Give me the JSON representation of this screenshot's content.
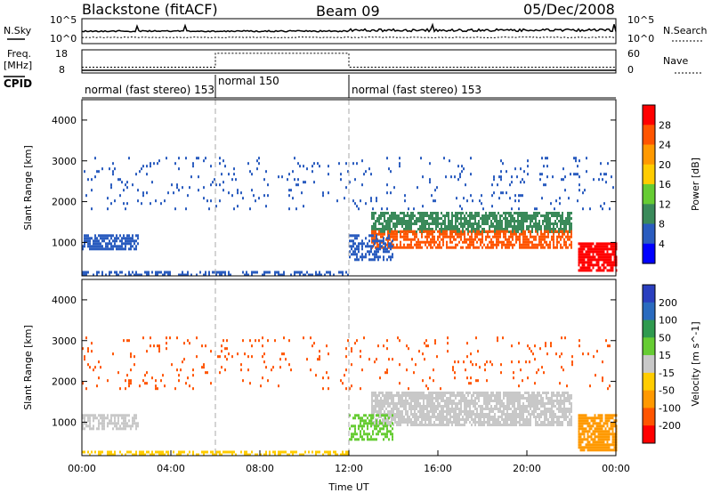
{
  "header": {
    "station": "Blackstone (fitACF)",
    "beam": "Beam 09",
    "date": "05/Dec/2008"
  },
  "summary": {
    "nsky_label": "N.Sky",
    "nsky_ticks": [
      "10^5",
      "10^0"
    ],
    "nsearch_label": "N.Search",
    "nsearch_ticks": [
      "10^5",
      "10^0"
    ],
    "freq_label": "Freq.",
    "freq_unit": "[MHz]",
    "freq_ticks": [
      "18",
      "8"
    ],
    "nave_label": "Nave",
    "nave_ticks": [
      "60",
      "0"
    ],
    "cpid_label": "CPID",
    "cpid_segments": [
      {
        "label": "normal (fast stereo) 153",
        "start_hour": 0,
        "end_hour": 6
      },
      {
        "label": "normal 150",
        "start_hour": 6,
        "end_hour": 12
      },
      {
        "label": "normal (fast stereo) 153",
        "start_hour": 12,
        "end_hour": 24
      }
    ],
    "freq_mhz": [
      {
        "t": 0,
        "v": 10.5
      },
      {
        "t": 6,
        "v": 10.5
      },
      {
        "t": 6,
        "v": 16.5
      },
      {
        "t": 12,
        "v": 16.5
      },
      {
        "t": 12,
        "v": 10.5
      },
      {
        "t": 24,
        "v": 10.5
      }
    ]
  },
  "chart_data": [
    {
      "type": "heatmap",
      "name": "power",
      "ylabel": "Slant Range [km]",
      "xlabel": "",
      "xlim": [
        0,
        24
      ],
      "ylim": [
        180,
        4500
      ],
      "yticks": [
        "1000",
        "2000",
        "3000",
        "4000"
      ],
      "ytick_values": [
        1000,
        2000,
        3000,
        4000
      ],
      "colorbar_label": "Power [dB]",
      "colorbar_ticks": [
        "4",
        "8",
        "12",
        "16",
        "20",
        "24",
        "28"
      ],
      "colorbar_colors": [
        "#0000ff",
        "#2a5cbf",
        "#3a8a5a",
        "#66cc33",
        "#ffcc00",
        "#ff9900",
        "#ff5500",
        "#ff0000"
      ],
      "regions": [
        {
          "t0": 0.0,
          "t1": 2.5,
          "r0": 850,
          "r1": 1200,
          "color": "#2a5cbf",
          "density": 0.7
        },
        {
          "t0": 13.0,
          "t1": 22.0,
          "r0": 1250,
          "r1": 1750,
          "color": "#3a8a5a",
          "density": 0.75
        },
        {
          "t0": 13.0,
          "t1": 22.0,
          "r0": 900,
          "r1": 1300,
          "color": "#ff5500",
          "density": 0.7
        },
        {
          "t0": 22.3,
          "t1": 24.0,
          "r0": 300,
          "r1": 1000,
          "color": "#ff0000",
          "density": 0.8
        },
        {
          "t0": 12.0,
          "t1": 14.0,
          "r0": 600,
          "r1": 1200,
          "color": "#2a5cbf",
          "density": 0.45
        },
        {
          "t0": 0.0,
          "t1": 12.0,
          "r0": 180,
          "r1": 300,
          "color": "#2a5cbf",
          "density": 0.5
        },
        {
          "t0": 0.0,
          "t1": 24.0,
          "r0": 1800,
          "r1": 3100,
          "color": "#2a5cbf",
          "density": 0.05
        }
      ]
    },
    {
      "type": "heatmap",
      "name": "velocity",
      "ylabel": "Slant Range [km]",
      "xlabel": "Time UT",
      "xlim": [
        0,
        24
      ],
      "ylim": [
        180,
        4500
      ],
      "xticks": [
        "00:00",
        "04:00",
        "08:00",
        "12:00",
        "16:00",
        "20:00",
        "00:00"
      ],
      "xtick_values": [
        0,
        4,
        8,
        12,
        16,
        20,
        24
      ],
      "yticks": [
        "1000",
        "2000",
        "3000",
        "4000"
      ],
      "ytick_values": [
        1000,
        2000,
        3000,
        4000
      ],
      "colorbar_label": "Velocity [m s^-1]",
      "colorbar_ticks": [
        "200",
        "100",
        "50",
        "15",
        "-15",
        "-50",
        "-100",
        "-200"
      ],
      "colorbar_colors": [
        "#2a3fbf",
        "#2a6bbf",
        "#2f9a4f",
        "#66cc33",
        "#c8c8c8",
        "#ffcc00",
        "#ff9900",
        "#ff5500",
        "#ff0000"
      ],
      "regions": [
        {
          "t0": 13.0,
          "t1": 22.0,
          "r0": 900,
          "r1": 1750,
          "color": "#c8c8c8",
          "density": 0.8
        },
        {
          "t0": 0.0,
          "t1": 2.5,
          "r0": 850,
          "r1": 1200,
          "color": "#c8c8c8",
          "density": 0.6
        },
        {
          "t0": 12.0,
          "t1": 14.0,
          "r0": 600,
          "r1": 1200,
          "color": "#66cc33",
          "density": 0.5
        },
        {
          "t0": 22.3,
          "t1": 24.0,
          "r0": 300,
          "r1": 1200,
          "color": "#ff9900",
          "density": 0.8
        },
        {
          "t0": 0.0,
          "t1": 12.0,
          "r0": 180,
          "r1": 300,
          "color": "#ffcc00",
          "density": 0.5
        },
        {
          "t0": 0.0,
          "t1": 24.0,
          "r0": 1800,
          "r1": 3100,
          "color": "#ff5500",
          "density": 0.05
        }
      ]
    }
  ]
}
